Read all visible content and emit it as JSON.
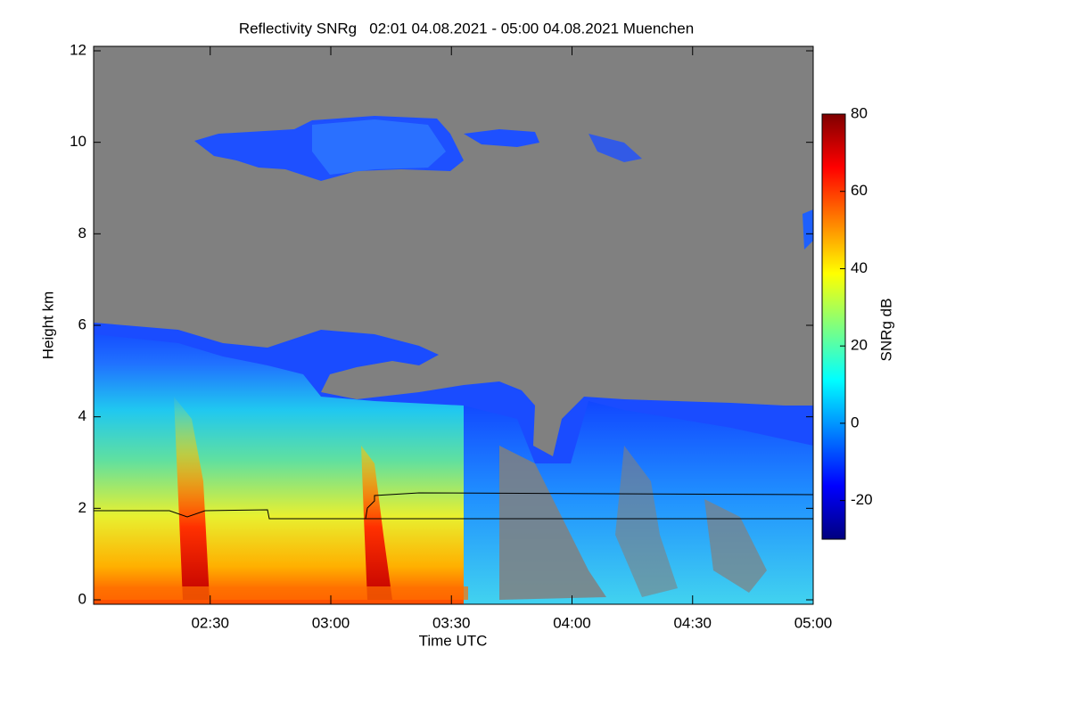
{
  "chart_data": {
    "type": "heatmap",
    "title": "Reflectivity SNRg   02:01 04.08.2021 - 05:00 04.08.2021 Muenchen",
    "xlabel": "Time UTC",
    "ylabel": "Height km",
    "xlim": [
      "2021-08-04T02:01Z",
      "2021-08-04T05:00Z"
    ],
    "xticks": [
      {
        "value": "2021-08-04T02:30Z",
        "label": "02:30"
      },
      {
        "value": "2021-08-04T03:00Z",
        "label": "03:00"
      },
      {
        "value": "2021-08-04T03:30Z",
        "label": "03:30"
      },
      {
        "value": "2021-08-04T04:00Z",
        "label": "04:00"
      },
      {
        "value": "2021-08-04T04:30Z",
        "label": "04:30"
      },
      {
        "value": "2021-08-04T05:00Z",
        "label": "05:00"
      }
    ],
    "ylim": [
      0,
      12
    ],
    "yticks": [
      0,
      2,
      4,
      6,
      8,
      10,
      12
    ],
    "background": "#808080",
    "colorbar": {
      "label": "SNRg dB",
      "lim": [
        -30,
        80
      ],
      "ticks": [
        -20,
        0,
        20,
        40,
        60,
        80
      ],
      "colors": [
        "#00007f",
        "#0000ff",
        "#007fff",
        "#00ffff",
        "#7fff7f",
        "#ffff00",
        "#ff7f00",
        "#ff0000",
        "#7f0000"
      ]
    }
  }
}
